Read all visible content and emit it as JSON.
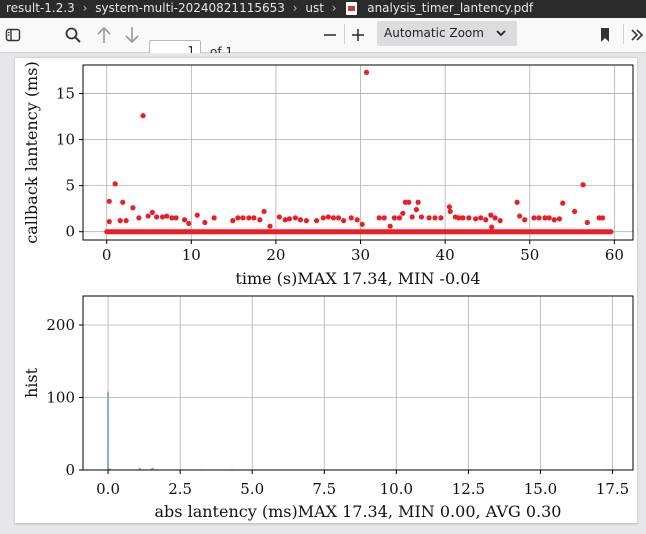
{
  "titlebar": {
    "crumbs": [
      "result-1.2.3",
      "system-multi-20240821115653",
      "ust"
    ],
    "filename": "analysis_timer_lantency.pdf"
  },
  "toolbar": {
    "page_number": "1",
    "page_count_label": "of 1",
    "zoom_label": "Automatic Zoom",
    "icons": [
      "sidebar-toggle-icon",
      "search-icon",
      "previous-page-icon",
      "next-page-icon",
      "zoom-out-icon",
      "zoom-in-icon",
      "bookmark-icon",
      "more-tools-icon"
    ]
  },
  "chart_data": [
    {
      "type": "scatter",
      "xlabel": "time (s)MAX 17.34, MIN -0.04",
      "ylabel": "callback lantency (ms)",
      "xlim": [
        -2.8,
        62.2
      ],
      "ylim": [
        -0.9,
        18.1
      ],
      "xticks": [
        0,
        10,
        20,
        30,
        40,
        50,
        60
      ],
      "yticks": [
        0,
        5,
        10,
        15
      ],
      "grid": true,
      "marker_color": "#ee1c25",
      "baseline": {
        "y": 0,
        "x_start": 0,
        "x_end": 59.6
      },
      "series": [
        {
          "points": [
            [
              0.3,
              3.3
            ],
            [
              0.3,
              1.1
            ],
            [
              1.0,
              5.2
            ],
            [
              1.6,
              1.2
            ],
            [
              1.9,
              3.2
            ],
            [
              2.3,
              1.2
            ],
            [
              3.1,
              2.6
            ],
            [
              3.8,
              1.5
            ],
            [
              4.3,
              12.6
            ],
            [
              4.9,
              1.7
            ],
            [
              5.4,
              2.1
            ],
            [
              5.9,
              1.6
            ],
            [
              6.6,
              1.6
            ],
            [
              7.1,
              1.7
            ],
            [
              7.7,
              1.5
            ],
            [
              8.2,
              1.5
            ],
            [
              9.2,
              1.3
            ],
            [
              9.7,
              0.9
            ],
            [
              10.7,
              1.8
            ],
            [
              11.6,
              1.0
            ],
            [
              12.7,
              1.5
            ],
            [
              14.9,
              1.2
            ],
            [
              15.5,
              1.5
            ],
            [
              16.1,
              1.5
            ],
            [
              16.8,
              1.5
            ],
            [
              17.4,
              1.5
            ],
            [
              18.1,
              1.3
            ],
            [
              18.6,
              2.2
            ],
            [
              19.3,
              0.6
            ],
            [
              20.4,
              1.6
            ],
            [
              21.1,
              1.3
            ],
            [
              21.6,
              1.4
            ],
            [
              22.3,
              1.5
            ],
            [
              22.9,
              1.3
            ],
            [
              23.6,
              1.2
            ],
            [
              24.8,
              1.2
            ],
            [
              25.6,
              1.5
            ],
            [
              26.2,
              1.6
            ],
            [
              26.8,
              1.5
            ],
            [
              27.4,
              1.5
            ],
            [
              28.0,
              1.2
            ],
            [
              28.9,
              1.5
            ],
            [
              29.6,
              1.3
            ],
            [
              30.2,
              0.8
            ],
            [
              30.7,
              17.3
            ],
            [
              32.2,
              1.5
            ],
            [
              32.8,
              1.5
            ],
            [
              33.5,
              0.6
            ],
            [
              34.0,
              1.5
            ],
            [
              34.6,
              1.5
            ],
            [
              35.0,
              2.0
            ],
            [
              35.3,
              3.2
            ],
            [
              35.7,
              3.2
            ],
            [
              36.1,
              1.6
            ],
            [
              36.6,
              2.4
            ],
            [
              36.8,
              3.2
            ],
            [
              37.2,
              1.6
            ],
            [
              38.1,
              1.5
            ],
            [
              38.8,
              1.5
            ],
            [
              39.5,
              1.5
            ],
            [
              40.5,
              2.7
            ],
            [
              40.6,
              2.2
            ],
            [
              41.2,
              1.6
            ],
            [
              41.6,
              1.5
            ],
            [
              42.1,
              1.5
            ],
            [
              42.8,
              1.5
            ],
            [
              43.6,
              1.4
            ],
            [
              44.2,
              1.5
            ],
            [
              44.8,
              1.3
            ],
            [
              45.4,
              1.8
            ],
            [
              45.9,
              1.5
            ],
            [
              46.5,
              1.2
            ],
            [
              45.5,
              0.5
            ],
            [
              48.5,
              3.2
            ],
            [
              48.8,
              1.7
            ],
            [
              49.4,
              1.3
            ],
            [
              50.5,
              1.5
            ],
            [
              51.1,
              1.5
            ],
            [
              51.8,
              1.5
            ],
            [
              52.3,
              1.5
            ],
            [
              52.9,
              1.3
            ],
            [
              53.5,
              1.4
            ],
            [
              53.9,
              3.1
            ],
            [
              55.3,
              2.2
            ],
            [
              56.3,
              5.1
            ],
            [
              56.8,
              1.0
            ],
            [
              58.2,
              1.5
            ],
            [
              58.6,
              1.5
            ]
          ]
        }
      ]
    },
    {
      "type": "bar",
      "xlabel": "abs lantency (ms)MAX 17.34, MIN 0.00, AVG 0.30",
      "ylabel": "hist",
      "xlim": [
        -0.87,
        18.21
      ],
      "ylim": [
        0,
        240
      ],
      "xticks": [
        "0.0",
        "2.5",
        "5.0",
        "7.5",
        "10.0",
        "12.5",
        "15.0",
        "17.5"
      ],
      "yticks": [
        0,
        100,
        200
      ],
      "grid": true,
      "bar_color": "#87aec8",
      "bars": [
        {
          "x": 0.0,
          "value": 108
        },
        {
          "x": 0.06,
          "value": 2
        },
        {
          "x": 1.1,
          "value": 3
        },
        {
          "x": 1.5,
          "value": 2
        },
        {
          "x": 1.55,
          "value": 3
        },
        {
          "x": 3.2,
          "value": 1
        },
        {
          "x": 4.3,
          "value": 1
        },
        {
          "x": 12.6,
          "value": 1
        },
        {
          "x": 17.34,
          "value": 1
        }
      ]
    }
  ]
}
